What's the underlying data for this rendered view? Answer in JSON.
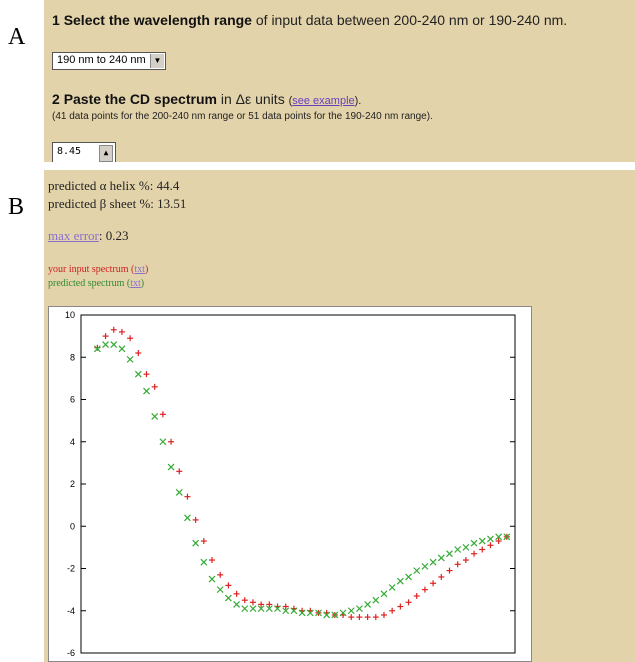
{
  "labels": {
    "a": "A",
    "b": "B"
  },
  "step1": {
    "number": "1",
    "bold": "Select the wavelength range",
    "rest": "of input data between 200-240 nm or 190-240 nm.",
    "select_value": "190 nm to 240 nm"
  },
  "step2": {
    "number": "2",
    "bold": "Paste the CD spectrum",
    "rest": "in Δε units",
    "link": "see example",
    "note": "(41 data points for the 200-240 nm range or 51 data points for the 190-240 nm range).",
    "textarea_value": "8.45"
  },
  "results": {
    "helix_label": "predicted α helix %:",
    "helix_value": "44.4",
    "sheet_label": "predicted β sheet %:",
    "sheet_value": "13.51",
    "maxerr_link": "max error",
    "maxerr_value": "0.23",
    "input_label": "your input spectrum",
    "pred_label": "predicted spectrum",
    "txt_link": "txt"
  },
  "colors": {
    "input": "#dd2222",
    "predicted": "#33aa33"
  },
  "chart_data": {
    "type": "scatter",
    "ylim": [
      -6,
      10
    ],
    "yticks": [
      -6,
      -4,
      -2,
      0,
      2,
      4,
      6,
      8,
      10
    ],
    "xlim": [
      188,
      241
    ],
    "series": [
      {
        "name": "your input spectrum",
        "marker": "+",
        "x": [
          190,
          191,
          192,
          193,
          194,
          195,
          196,
          197,
          198,
          199,
          200,
          201,
          202,
          203,
          204,
          205,
          206,
          207,
          208,
          209,
          210,
          211,
          212,
          213,
          214,
          215,
          216,
          217,
          218,
          219,
          220,
          221,
          222,
          223,
          224,
          225,
          226,
          227,
          228,
          229,
          230,
          231,
          232,
          233,
          234,
          235,
          236,
          237,
          238,
          239,
          240
        ],
        "y": [
          8.45,
          9.0,
          9.3,
          9.2,
          8.9,
          8.2,
          7.2,
          6.6,
          5.3,
          4.0,
          2.6,
          1.4,
          0.3,
          -0.7,
          -1.6,
          -2.3,
          -2.8,
          -3.2,
          -3.5,
          -3.6,
          -3.7,
          -3.7,
          -3.8,
          -3.8,
          -3.9,
          -4.0,
          -4.0,
          -4.1,
          -4.1,
          -4.2,
          -4.2,
          -4.3,
          -4.3,
          -4.3,
          -4.3,
          -4.2,
          -4.0,
          -3.8,
          -3.6,
          -3.3,
          -3.0,
          -2.7,
          -2.4,
          -2.1,
          -1.8,
          -1.6,
          -1.3,
          -1.1,
          -0.9,
          -0.7,
          -0.5
        ]
      },
      {
        "name": "predicted spectrum",
        "marker": "x",
        "x": [
          190,
          191,
          192,
          193,
          194,
          195,
          196,
          197,
          198,
          199,
          200,
          201,
          202,
          203,
          204,
          205,
          206,
          207,
          208,
          209,
          210,
          211,
          212,
          213,
          214,
          215,
          216,
          217,
          218,
          219,
          220,
          221,
          222,
          223,
          224,
          225,
          226,
          227,
          228,
          229,
          230,
          231,
          232,
          233,
          234,
          235,
          236,
          237,
          238,
          239,
          240
        ],
        "y": [
          8.4,
          8.6,
          8.6,
          8.4,
          7.9,
          7.2,
          6.4,
          5.2,
          4.0,
          2.8,
          1.6,
          0.4,
          -0.8,
          -1.7,
          -2.5,
          -3.0,
          -3.4,
          -3.7,
          -3.9,
          -3.9,
          -3.9,
          -3.9,
          -3.9,
          -4.0,
          -4.0,
          -4.1,
          -4.1,
          -4.1,
          -4.2,
          -4.2,
          -4.1,
          -4.0,
          -3.9,
          -3.7,
          -3.5,
          -3.2,
          -2.9,
          -2.6,
          -2.4,
          -2.1,
          -1.9,
          -1.7,
          -1.5,
          -1.3,
          -1.1,
          -1.0,
          -0.8,
          -0.7,
          -0.6,
          -0.5,
          -0.5
        ]
      }
    ]
  }
}
